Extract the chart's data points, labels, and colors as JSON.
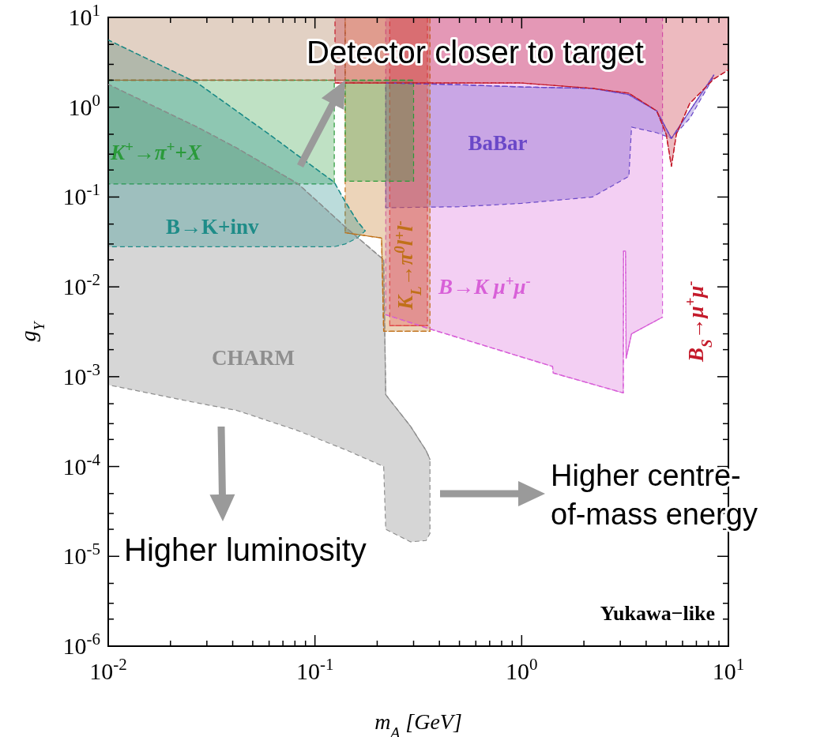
{
  "chart_data": {
    "type": "line",
    "xlabel": "m$_{A}$ [GeV]",
    "ylabel": "g$_{Y}$",
    "log": "xy",
    "line_style": "dashed",
    "xlim": [
      0.01,
      10
    ],
    "ylim": [
      1e-06,
      10
    ],
    "xticks": [
      {
        "value": 0.01,
        "label": "10$^{-2}$"
      },
      {
        "value": 0.1,
        "label": "10$^{-1}$"
      },
      {
        "value": 1,
        "label": "10$^{0}$"
      },
      {
        "value": 10,
        "label": "10$^{1}$"
      },
      {
        "value": 0.02,
        "label": null
      },
      {
        "value": 0.03,
        "label": null
      },
      {
        "value": 0.04,
        "label": null
      },
      {
        "value": 0.05,
        "label": null
      },
      {
        "value": 0.06,
        "label": null
      },
      {
        "value": 0.07,
        "label": null
      },
      {
        "value": 0.08,
        "label": null
      },
      {
        "value": 0.09,
        "label": null
      },
      {
        "value": 0.2,
        "label": null
      },
      {
        "value": 0.3,
        "label": null
      },
      {
        "value": 0.4,
        "label": null
      },
      {
        "value": 0.5,
        "label": null
      },
      {
        "value": 0.6,
        "label": null
      },
      {
        "value": 0.7,
        "label": null
      },
      {
        "value": 0.8,
        "label": null
      },
      {
        "value": 0.9,
        "label": null
      },
      {
        "value": 2,
        "label": null
      },
      {
        "value": 3,
        "label": null
      },
      {
        "value": 4,
        "label": null
      },
      {
        "value": 5,
        "label": null
      },
      {
        "value": 6,
        "label": null
      },
      {
        "value": 7,
        "label": null
      },
      {
        "value": 8,
        "label": null
      },
      {
        "value": 9,
        "label": null
      }
    ],
    "yticks": [
      {
        "value": 1e-06,
        "label": "10$^{-6}$"
      },
      {
        "value": 1e-05,
        "label": "10$^{-5}$"
      },
      {
        "value": 0.0001,
        "label": "10$^{-4}$"
      },
      {
        "value": 0.001,
        "label": "10$^{-3}$"
      },
      {
        "value": 0.01,
        "label": "10$^{-2}$"
      },
      {
        "value": 0.1,
        "label": "10$^{-1}$"
      },
      {
        "value": 1,
        "label": "10$^{0}$"
      },
      {
        "value": 10,
        "label": "10$^{1}$"
      },
      {
        "value": 2e-06,
        "label": null
      },
      {
        "value": 3e-06,
        "label": null
      },
      {
        "value": 5e-06,
        "label": null
      },
      {
        "value": 2e-05,
        "label": null
      },
      {
        "value": 3e-05,
        "label": null
      },
      {
        "value": 5e-05,
        "label": null
      },
      {
        "value": 0.0002,
        "label": null
      },
      {
        "value": 0.0003,
        "label": null
      },
      {
        "value": 0.0005,
        "label": null
      },
      {
        "value": 0.002,
        "label": null
      },
      {
        "value": 0.003,
        "label": null
      },
      {
        "value": 0.005,
        "label": null
      },
      {
        "value": 0.02,
        "label": null
      },
      {
        "value": 0.03,
        "label": null
      },
      {
        "value": 0.05,
        "label": null
      },
      {
        "value": 0.2,
        "label": null
      },
      {
        "value": 0.3,
        "label": null
      },
      {
        "value": 0.5,
        "label": null
      },
      {
        "value": 2,
        "label": null
      },
      {
        "value": 3,
        "label": null
      },
      {
        "value": 5,
        "label": null
      }
    ],
    "series": [
      {
        "name": "CHARM",
        "color": "#8e8e8e",
        "x": [
          0.01,
          0.027,
          0.042,
          0.083,
          0.144,
          0.215,
          0.22,
          0.29,
          0.345,
          0.36
        ],
        "values": [
          1.8,
          0.6,
          0.35,
          0.14,
          0.044,
          0.02,
          0.00063,
          0.00028,
          0.00015,
          0.00012
        ],
        "upper": [
          1.8,
          0.6,
          0.35,
          0.14,
          0.044,
          0.02,
          0.00063,
          0.00028,
          0.00015,
          0.00012
        ],
        "lower": [
          0.00081,
          0.00051,
          0.00042,
          0.00025,
          0.00015,
          0.0001,
          2e-05,
          1.45e-05,
          1.5e-05,
          1.8e-05
        ]
      },
      {
        "name": "B→K μ$^{+}$μ$^{-}$",
        "color": "#d860d8",
        "x": [
          0.22,
          0.36,
          1.41,
          1.42,
          3.1,
          3.11,
          3.18,
          3.2,
          3.4,
          4.8
        ],
        "values": [
          0.0049,
          0.0034,
          0.0013,
          0.0011,
          0.00066,
          0.025,
          0.025,
          0.0016,
          0.003,
          0.0046
        ],
        "upper": [
          10,
          10,
          10,
          10,
          10,
          10,
          10,
          10,
          10,
          10
        ],
        "lower": [
          0.0049,
          0.0034,
          0.0013,
          0.0011,
          0.00066,
          0.025,
          0.025,
          0.0016,
          0.003,
          0.0046
        ]
      },
      {
        "name": "BaBar",
        "color": "#6a48c8",
        "x": [
          0.22,
          0.5,
          1,
          2.2,
          3.3,
          3.4,
          4.5,
          5.3,
          6.5,
          8.5
        ],
        "values": [
          1.86,
          1.78,
          1.68,
          1.62,
          1.38,
          1.32,
          0.91,
          0.45,
          0.91,
          2.28
        ],
        "upper": [
          1.86,
          1.78,
          1.68,
          1.62,
          1.38,
          1.32,
          0.91,
          0.45,
          0.91,
          2.28
        ],
        "lower": [
          0.076,
          0.078,
          0.085,
          0.1,
          0.17,
          0.6,
          0.52,
          0.45,
          0.75,
          2.2
        ]
      },
      {
        "name": "K$_{L}$→π$^{0}$l$^{+}$l$^{-}$",
        "color": "#c07018",
        "x": [
          0.14,
          0.21,
          0.215,
          0.36
        ],
        "values": [
          0.04,
          0.035,
          0.0032,
          0.0032
        ],
        "upper": [
          10,
          10,
          10,
          10
        ],
        "lower": [
          0.04,
          0.035,
          0.0032,
          0.0032
        ]
      },
      {
        "color": "#e04848",
        "x": [
          0.23,
          0.35
        ],
        "values": [
          0.0037,
          0.0037
        ],
        "upper": [
          10,
          10
        ],
        "lower": [
          0.0037,
          0.0037
        ]
      },
      {
        "name": "K$^{+}$→π$^{+}$+X",
        "color": "#2a9a3a",
        "x": [
          0.01,
          0.124,
          0.13,
          0.14,
          0.3
        ],
        "values": [
          2,
          2,
          null,
          2,
          2
        ],
        "upper": [
          2,
          2,
          null,
          2,
          2
        ],
        "lower": [
          0.14,
          0.14,
          null,
          0.15,
          0.15
        ]
      },
      {
        "name": "B→K+inv",
        "color": "#1e8c88",
        "x": [
          0.01,
          0.027,
          0.06,
          0.1,
          0.124,
          0.14,
          0.16,
          0.175
        ],
        "values": [
          5.6,
          1.86,
          0.5,
          0.21,
          0.146,
          0.089,
          0.054,
          0.042
        ],
        "upper": [
          5.6,
          1.86,
          0.5,
          0.21,
          0.146,
          0.089,
          0.054,
          0.042
        ],
        "lower": [
          0.028,
          0.028,
          0.028,
          0.028,
          0.028,
          0.03,
          0.035,
          0.042
        ]
      },
      {
        "color": "#a0683a",
        "x": [
          0.01,
          0.14
        ],
        "values": [
          2,
          2
        ],
        "upper": [
          10,
          10
        ],
        "lower": [
          2,
          2
        ]
      },
      {
        "name": "B$_{S}$→μ$^{+}$μ$^{-}$",
        "color": "#c41a2a",
        "x": [
          0.125,
          1,
          2.2,
          3.3,
          4.5,
          5,
          5.3,
          5.6,
          6.5,
          8.5,
          10
        ],
        "values": [
          1.86,
          1.86,
          1.62,
          1.43,
          0.91,
          0.5,
          0.22,
          0.5,
          1.1,
          2.06,
          2.6
        ],
        "upper": [
          10,
          10,
          10,
          10,
          10,
          10,
          10,
          10,
          10,
          10,
          10
        ],
        "lower": [
          1.86,
          1.86,
          1.62,
          1.43,
          0.91,
          0.5,
          0.22,
          0.5,
          1.1,
          2.06,
          2.6
        ]
      }
    ],
    "annotations": [
      {
        "text": "Detector closer to target",
        "x": 0.14,
        "y": 2
      },
      "Higher luminosity",
      "Higher centre-of-mass energy",
      "Yukawa−like"
    ]
  }
}
